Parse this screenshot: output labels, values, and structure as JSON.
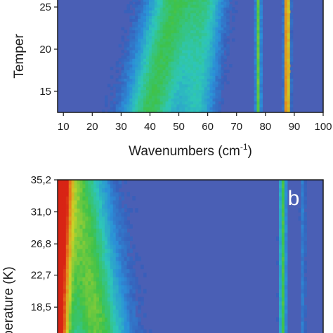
{
  "chart_data": [
    {
      "type": "heatmap",
      "panel_label": "",
      "xlabel": "Wavenumbers (cm",
      "xlabel_sup": "-1",
      "xlabel_end": ")",
      "ylabel": "Temper",
      "xlim": [
        8,
        100
      ],
      "ylim": [
        12.5,
        26
      ],
      "xticks": [
        10,
        20,
        30,
        40,
        50,
        60,
        70,
        80,
        90,
        100
      ],
      "xtick_labels": [
        "10",
        "20",
        "30",
        "40",
        "50",
        "60",
        "70",
        "80",
        "90",
        "100"
      ],
      "yticks": [
        15,
        20,
        25
      ],
      "ytick_labels": [
        "15",
        "20",
        "25"
      ],
      "colormap": [
        "#3d4fb0",
        "#2b8fd8",
        "#2ec6b8",
        "#3ec24a",
        "#c8d428",
        "#e8821c",
        "#d82414"
      ],
      "background_color": "#4a5fb5",
      "features": [
        {
          "name": "broad band",
          "center_at_ymin": 40,
          "center_at_ymax": 49,
          "width": 9,
          "intensity": 0.48
        },
        {
          "name": "shoulder",
          "center_at_ymin": 56,
          "center_at_ymax": 60,
          "width": 6,
          "intensity": 0.3
        },
        {
          "name": "sharp line",
          "center": 77.5,
          "width": 0.8,
          "intensity": 0.55
        },
        {
          "name": "sharp line",
          "center": 87.5,
          "width": 0.9,
          "intensity": 1.0
        }
      ]
    },
    {
      "type": "heatmap",
      "panel_label": "b",
      "xlabel": "",
      "ylabel": "perature (K)",
      "xlim": [
        8,
        100
      ],
      "ylim": [
        14,
        35.2
      ],
      "yticks": [
        18.5,
        22.7,
        26.8,
        31.0,
        35.2
      ],
      "ytick_labels": [
        "18,5",
        "22,7",
        "26,8",
        "31,0",
        "35,2"
      ],
      "colormap": [
        "#3d4fb0",
        "#2b8fd8",
        "#2ec6b8",
        "#3ec24a",
        "#c8d428",
        "#e8821c",
        "#d82414"
      ],
      "background_color": "#4a5fb5",
      "features": [
        {
          "name": "low-frequency edge",
          "center": 8,
          "width": 4,
          "intensity": 1.0
        },
        {
          "name": "broad band",
          "center_at_ymin": 22,
          "center_at_ymax": 14,
          "width": 10,
          "intensity": 0.55
        },
        {
          "name": "sharp line",
          "center": 86,
          "width": 1.0,
          "intensity": 0.5
        },
        {
          "name": "weak line",
          "center": 93,
          "width": 0.8,
          "intensity": 0.12
        }
      ]
    }
  ]
}
